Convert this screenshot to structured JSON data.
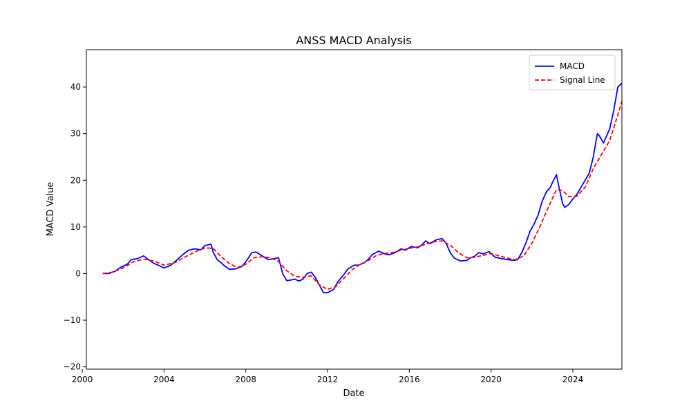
{
  "chart_data": {
    "type": "line",
    "title": "ANSS MACD Analysis",
    "xlabel": "Date",
    "ylabel": "MACD Value",
    "xlim": [
      2000.2,
      2026.4
    ],
    "ylim": [
      -20.5,
      48.0
    ],
    "x_ticks": [
      2000,
      2004,
      2008,
      2012,
      2016,
      2020,
      2024
    ],
    "y_ticks": [
      -20,
      -10,
      0,
      10,
      20,
      30,
      40
    ],
    "grid": false,
    "legend_position": "top-right",
    "series": [
      {
        "name": "MACD",
        "color": "#0000ff",
        "style": "solid",
        "points": [
          [
            2001.0,
            0.0
          ],
          [
            2001.3,
            0.0
          ],
          [
            2001.6,
            0.5
          ],
          [
            2001.9,
            1.4
          ],
          [
            2002.2,
            2.0
          ],
          [
            2002.4,
            3.0
          ],
          [
            2002.7,
            3.2
          ],
          [
            2003.0,
            3.8
          ],
          [
            2003.2,
            3.1
          ],
          [
            2003.5,
            2.2
          ],
          [
            2003.8,
            1.6
          ],
          [
            2004.0,
            1.2
          ],
          [
            2004.3,
            1.7
          ],
          [
            2004.6,
            2.8
          ],
          [
            2004.9,
            4.0
          ],
          [
            2005.2,
            5.0
          ],
          [
            2005.5,
            5.3
          ],
          [
            2005.8,
            5.1
          ],
          [
            2006.0,
            6.0
          ],
          [
            2006.3,
            6.3
          ],
          [
            2006.4,
            4.6
          ],
          [
            2006.6,
            3.0
          ],
          [
            2006.8,
            2.3
          ],
          [
            2007.0,
            1.5
          ],
          [
            2007.2,
            0.9
          ],
          [
            2007.5,
            1.0
          ],
          [
            2007.8,
            1.5
          ],
          [
            2008.0,
            2.5
          ],
          [
            2008.3,
            4.5
          ],
          [
            2008.5,
            4.6
          ],
          [
            2008.8,
            3.8
          ],
          [
            2009.1,
            3.0
          ],
          [
            2009.4,
            3.2
          ],
          [
            2009.6,
            3.4
          ],
          [
            2009.8,
            0.0
          ],
          [
            2010.0,
            -1.5
          ],
          [
            2010.2,
            -1.4
          ],
          [
            2010.4,
            -1.2
          ],
          [
            2010.6,
            -1.6
          ],
          [
            2010.8,
            -1.2
          ],
          [
            2011.0,
            0.0
          ],
          [
            2011.2,
            0.3
          ],
          [
            2011.4,
            -0.8
          ],
          [
            2011.6,
            -2.5
          ],
          [
            2011.8,
            -4.1
          ],
          [
            2012.0,
            -4.1
          ],
          [
            2012.3,
            -3.4
          ],
          [
            2012.5,
            -1.8
          ],
          [
            2012.8,
            -0.2
          ],
          [
            2013.0,
            1.0
          ],
          [
            2013.3,
            1.8
          ],
          [
            2013.5,
            1.8
          ],
          [
            2013.8,
            2.3
          ],
          [
            2014.0,
            3.1
          ],
          [
            2014.2,
            4.1
          ],
          [
            2014.5,
            4.8
          ],
          [
            2014.8,
            4.2
          ],
          [
            2015.0,
            4.0
          ],
          [
            2015.3,
            4.5
          ],
          [
            2015.6,
            5.3
          ],
          [
            2015.8,
            5.0
          ],
          [
            2016.1,
            5.8
          ],
          [
            2016.4,
            5.5
          ],
          [
            2016.6,
            6.1
          ],
          [
            2016.8,
            7.0
          ],
          [
            2017.0,
            6.4
          ],
          [
            2017.3,
            7.2
          ],
          [
            2017.6,
            7.5
          ],
          [
            2017.8,
            6.5
          ],
          [
            2018.0,
            4.5
          ],
          [
            2018.2,
            3.3
          ],
          [
            2018.5,
            2.7
          ],
          [
            2018.8,
            2.8
          ],
          [
            2019.0,
            3.4
          ],
          [
            2019.2,
            3.7
          ],
          [
            2019.4,
            4.5
          ],
          [
            2019.6,
            4.2
          ],
          [
            2019.9,
            4.7
          ],
          [
            2020.2,
            3.5
          ],
          [
            2020.5,
            3.2
          ],
          [
            2020.8,
            3.0
          ],
          [
            2021.1,
            2.8
          ],
          [
            2021.3,
            3.0
          ],
          [
            2021.5,
            4.5
          ],
          [
            2021.7,
            6.5
          ],
          [
            2021.9,
            9.0
          ],
          [
            2022.1,
            10.6
          ],
          [
            2022.3,
            12.5
          ],
          [
            2022.5,
            15.5
          ],
          [
            2022.7,
            17.5
          ],
          [
            2022.9,
            18.5
          ],
          [
            2023.0,
            19.5
          ],
          [
            2023.2,
            21.2
          ],
          [
            2023.3,
            19.0
          ],
          [
            2023.5,
            15.0
          ],
          [
            2023.6,
            14.2
          ],
          [
            2023.8,
            14.8
          ],
          [
            2024.0,
            16.0
          ],
          [
            2024.2,
            17.0
          ],
          [
            2024.4,
            18.5
          ],
          [
            2024.6,
            20.0
          ],
          [
            2024.8,
            21.5
          ],
          [
            2025.0,
            25.0
          ],
          [
            2025.1,
            27.5
          ],
          [
            2025.2,
            30.0
          ],
          [
            2025.3,
            29.5
          ],
          [
            2025.5,
            28.0
          ],
          [
            2025.6,
            29.0
          ],
          [
            2025.8,
            31.0
          ],
          [
            2026.0,
            35.0
          ],
          [
            2026.2,
            40.0
          ],
          [
            2026.4,
            40.8
          ]
        ]
      },
      {
        "name": "Signal Line",
        "color": "#ff0000",
        "style": "dashed",
        "points": [
          [
            2001.0,
            0.0
          ],
          [
            2001.5,
            0.3
          ],
          [
            2002.0,
            1.2
          ],
          [
            2002.5,
            2.5
          ],
          [
            2003.0,
            3.1
          ],
          [
            2003.5,
            2.7
          ],
          [
            2004.0,
            1.8
          ],
          [
            2004.5,
            2.3
          ],
          [
            2005.0,
            3.5
          ],
          [
            2005.5,
            4.6
          ],
          [
            2006.0,
            5.5
          ],
          [
            2006.4,
            5.4
          ],
          [
            2006.8,
            3.6
          ],
          [
            2007.2,
            2.1
          ],
          [
            2007.6,
            1.3
          ],
          [
            2008.0,
            2.0
          ],
          [
            2008.4,
            3.4
          ],
          [
            2008.8,
            3.6
          ],
          [
            2009.2,
            3.4
          ],
          [
            2009.6,
            2.6
          ],
          [
            2010.0,
            0.6
          ],
          [
            2010.4,
            -0.6
          ],
          [
            2010.8,
            -0.8
          ],
          [
            2011.2,
            -0.5
          ],
          [
            2011.6,
            -2.4
          ],
          [
            2012.0,
            -3.4
          ],
          [
            2012.4,
            -2.8
          ],
          [
            2012.8,
            -1.0
          ],
          [
            2013.2,
            0.8
          ],
          [
            2013.6,
            2.0
          ],
          [
            2014.0,
            2.8
          ],
          [
            2014.4,
            3.9
          ],
          [
            2014.8,
            4.3
          ],
          [
            2015.2,
            4.5
          ],
          [
            2015.6,
            5.0
          ],
          [
            2016.0,
            5.4
          ],
          [
            2016.4,
            5.7
          ],
          [
            2016.8,
            6.3
          ],
          [
            2017.2,
            6.8
          ],
          [
            2017.6,
            7.0
          ],
          [
            2018.0,
            6.1
          ],
          [
            2018.4,
            4.5
          ],
          [
            2018.8,
            3.4
          ],
          [
            2019.2,
            3.5
          ],
          [
            2019.6,
            3.9
          ],
          [
            2020.0,
            4.3
          ],
          [
            2020.4,
            3.8
          ],
          [
            2020.8,
            3.3
          ],
          [
            2021.2,
            3.0
          ],
          [
            2021.6,
            3.8
          ],
          [
            2022.0,
            6.5
          ],
          [
            2022.4,
            10.2
          ],
          [
            2022.8,
            14.2
          ],
          [
            2023.2,
            18.0
          ],
          [
            2023.5,
            17.8
          ],
          [
            2023.8,
            16.5
          ],
          [
            2024.2,
            16.6
          ],
          [
            2024.6,
            18.5
          ],
          [
            2025.0,
            22.5
          ],
          [
            2025.4,
            25.5
          ],
          [
            2025.8,
            28.5
          ],
          [
            2026.2,
            34.0
          ],
          [
            2026.4,
            37.0
          ]
        ]
      }
    ]
  }
}
